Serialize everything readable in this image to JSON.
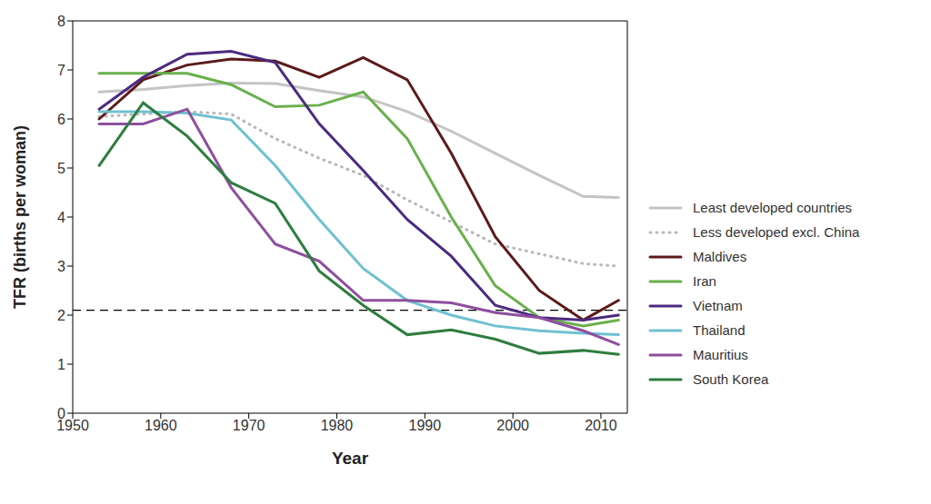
{
  "chart_data": {
    "type": "line",
    "xlabel": "Year",
    "ylabel": "TFR (births per woman)",
    "x": [
      1953,
      1958,
      1963,
      1968,
      1973,
      1978,
      1983,
      1988,
      1993,
      1998,
      2003,
      2008,
      2012
    ],
    "xlim": [
      1950,
      2013
    ],
    "xticks": [
      1950,
      1960,
      1970,
      1980,
      1990,
      2000,
      2010
    ],
    "ylim": [
      0,
      8
    ],
    "yticks": [
      0,
      1,
      2,
      3,
      4,
      5,
      6,
      7,
      8
    ],
    "grid": false,
    "legend": "right",
    "hlines": [
      {
        "y": 2.1,
        "line_style": "dashed",
        "color": "#000000"
      }
    ],
    "series": [
      {
        "name": "Least developed countries",
        "color": "#c4c4c4",
        "line_style": "solid",
        "values": [
          6.55,
          6.6,
          6.68,
          6.73,
          6.72,
          6.58,
          6.45,
          6.15,
          5.75,
          5.3,
          4.85,
          4.42,
          4.4
        ]
      },
      {
        "name": "Less developed excl. China",
        "color": "#b8b8b8",
        "line_style": "dotted",
        "values": [
          6.05,
          6.1,
          6.15,
          6.1,
          5.6,
          5.2,
          4.85,
          4.35,
          3.9,
          3.45,
          3.25,
          3.05,
          3.0
        ]
      },
      {
        "name": "Maldives",
        "color": "#5c1a1a",
        "line_style": "solid",
        "values": [
          6.0,
          6.8,
          7.1,
          7.22,
          7.18,
          6.85,
          7.25,
          6.8,
          5.3,
          3.6,
          2.5,
          1.9,
          2.3
        ]
      },
      {
        "name": "Iran",
        "color": "#6ab04c",
        "line_style": "solid",
        "values": [
          6.93,
          6.93,
          6.93,
          6.7,
          6.25,
          6.28,
          6.55,
          5.6,
          4.0,
          2.6,
          1.95,
          1.78,
          1.9
        ]
      },
      {
        "name": "Vietnam",
        "color": "#4b2a7f",
        "line_style": "solid",
        "values": [
          6.2,
          6.85,
          7.32,
          7.38,
          7.15,
          5.9,
          4.95,
          3.95,
          3.2,
          2.2,
          1.95,
          1.9,
          2.0
        ]
      },
      {
        "name": "Thailand",
        "color": "#6fc1d1",
        "line_style": "solid",
        "values": [
          6.15,
          6.15,
          6.12,
          5.98,
          5.05,
          3.95,
          2.95,
          2.3,
          2.0,
          1.78,
          1.68,
          1.63,
          1.6
        ]
      },
      {
        "name": "Mauritius",
        "color": "#8e4f9e",
        "line_style": "solid",
        "values": [
          5.9,
          5.9,
          6.2,
          4.6,
          3.45,
          3.1,
          2.3,
          2.3,
          2.25,
          2.05,
          1.95,
          1.68,
          1.4
        ]
      },
      {
        "name": "South Korea",
        "color": "#2e7d3e",
        "line_style": "solid",
        "values": [
          5.05,
          6.33,
          5.65,
          4.7,
          4.28,
          2.9,
          2.2,
          1.6,
          1.7,
          1.51,
          1.22,
          1.28,
          1.2
        ]
      }
    ]
  }
}
